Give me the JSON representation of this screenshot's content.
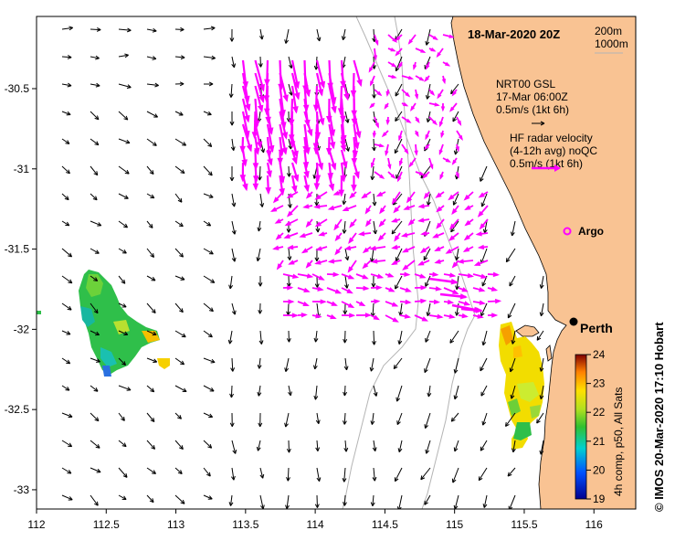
{
  "title": "18-Mar-2020 20Z",
  "depth_contours": [
    "200m",
    "1000m"
  ],
  "legend": {
    "model": [
      "NRT00 GSL",
      "17-Mar 06:00Z",
      "0.5m/s (1kt 6h)"
    ],
    "radar": [
      "HF radar velocity",
      "(4-12h avg) noQC",
      "0.5m/s (1kt 6h)"
    ],
    "argo": "Argo"
  },
  "place": "Perth",
  "colorbar": {
    "label": "4h comp, p50, All Sats",
    "ticks": [
      "24",
      "23",
      "22",
      "21",
      "20",
      "19"
    ],
    "range": [
      19,
      24
    ]
  },
  "credit": "© IMOS 20-Mar-2020 17:10 Hobart",
  "colors": {
    "land": "#f9c393",
    "radar_arrow": "#ff00ff",
    "contour": "#b4b4b4",
    "model_arrow": "#000000"
  },
  "axes": {
    "x_ticks": [
      "112",
      "112.5",
      "113",
      "113.5",
      "114",
      "114.5",
      "115",
      "115.5",
      "116"
    ],
    "y_ticks": [
      "-30.5",
      "-31",
      "-31.5",
      "-32",
      "-32.5",
      "-33"
    ],
    "lon_range": [
      112,
      116.3
    ],
    "lat_range": [
      -33.12,
      -30.05
    ]
  }
}
